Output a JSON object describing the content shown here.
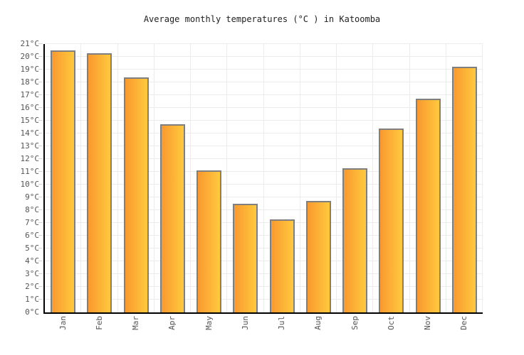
{
  "title": "Average monthly temperatures (°C ) in Katoomba",
  "chart_data": {
    "type": "bar",
    "title": "Average monthly temperatures (°C ) in Katoomba",
    "categories": [
      "Jan",
      "Feb",
      "Mar",
      "Apr",
      "May",
      "Jun",
      "Jul",
      "Aug",
      "Sep",
      "Oct",
      "Nov",
      "Dec"
    ],
    "values": [
      20.5,
      20.3,
      18.4,
      14.7,
      11.1,
      8.5,
      7.3,
      8.7,
      11.3,
      14.4,
      16.7,
      19.2
    ],
    "unit": "°C",
    "xlabel": "",
    "ylabel": "",
    "ylim": [
      0,
      21
    ],
    "ytick_step": 1,
    "ytick_labels": [
      "21°C",
      "20°C",
      "19°C",
      "18°C",
      "17°C",
      "16°C",
      "15°C",
      "14°C",
      "13°C",
      "12°C",
      "11°C",
      "10°C",
      "9°C",
      "8°C",
      "7°C",
      "6°C",
      "5°C",
      "4°C",
      "3°C",
      "2°C",
      "1°C",
      "0°C"
    ],
    "grid": true,
    "legend": "none",
    "colors": {
      "bar_gradient_left": "#f9992f",
      "bar_gradient_right": "#ffc93e",
      "bar_border": "#7f7f7f",
      "grid_line": "#ececec",
      "axis_line": "#000000",
      "tick_mark": "#d8d8d8",
      "tick_label": "#555555",
      "title_text": "#222222",
      "background": "#ffffff"
    }
  }
}
